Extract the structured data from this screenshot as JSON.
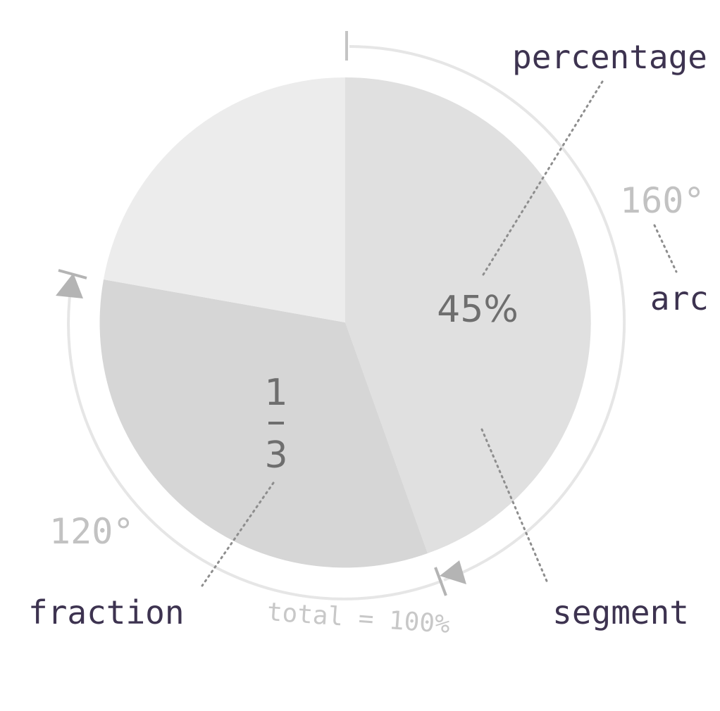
{
  "labels": {
    "percentage": "percentage",
    "arc": "arc",
    "segment": "segment",
    "fraction": "fraction",
    "total": "total = 100%"
  },
  "values": {
    "percent": "45%",
    "fraction_numerator": "1",
    "fraction_denominator": "3",
    "angle_right": "160°",
    "angle_left": "120°"
  },
  "colors": {
    "segment_large": "#e0e0e0",
    "segment_mid": "#d6d6d6",
    "segment_light": "#ececec",
    "outer_arc": "#e6e6e6",
    "arrow": "#b4b4b4",
    "callout_text": "#3d3350",
    "angle_text": "#c2c2c2",
    "inner_text": "#6e6e6e",
    "total_text": "#c8c8c8"
  }
}
